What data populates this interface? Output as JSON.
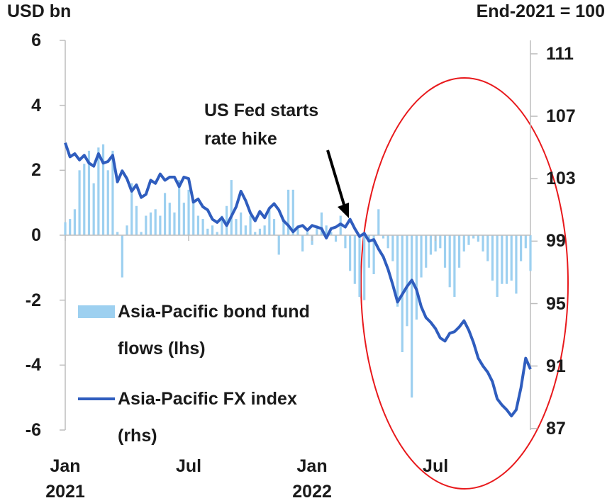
{
  "chart_data": {
    "type": "combo",
    "ylabel": "USD bn",
    "y2label": "End-2021 = 100",
    "annotation": "US Fed starts\nrate hike",
    "xlim": [
      0,
      98
    ],
    "xticks": [
      {
        "value": 0,
        "label": "Jan\n2021"
      },
      {
        "value": 26,
        "label": "Jul"
      },
      {
        "value": 52,
        "label": "Jan\n2022"
      },
      {
        "value": 78,
        "label": "Jul"
      }
    ],
    "ylim": [
      -6,
      6
    ],
    "yticks": [
      -6,
      -4,
      -2,
      0,
      2,
      4,
      6
    ],
    "y2lim": [
      86.9,
      111.86
    ],
    "y2ticks": [
      87,
      91,
      95,
      99,
      103,
      107,
      111
    ],
    "x": [
      0,
      1,
      2,
      3,
      4,
      5,
      6,
      7,
      8,
      9,
      10,
      11,
      12,
      13,
      14,
      15,
      16,
      17,
      18,
      19,
      20,
      21,
      22,
      23,
      24,
      25,
      26,
      27,
      28,
      29,
      30,
      31,
      32,
      33,
      34,
      35,
      36,
      37,
      38,
      39,
      40,
      41,
      42,
      43,
      44,
      45,
      46,
      47,
      48,
      49,
      50,
      51,
      52,
      53,
      54,
      55,
      56,
      57,
      58,
      59,
      60,
      61,
      62,
      63,
      64,
      65,
      66,
      67,
      68,
      69,
      70,
      71,
      72,
      73,
      74,
      75,
      76,
      77,
      78,
      79,
      80,
      81,
      82,
      83,
      84,
      85,
      86,
      87,
      88,
      89,
      90,
      91,
      92,
      93,
      94,
      95,
      96,
      97,
      98
    ],
    "series": [
      {
        "name": "Asia-Pacific bond fund\nflows (lhs)",
        "type": "bar",
        "color": "#9dd0f0",
        "values": [
          0.4,
          0.5,
          0.8,
          2.0,
          2.2,
          2.6,
          1.6,
          2.7,
          2.8,
          2.0,
          2.6,
          0.1,
          -1.3,
          0.3,
          1.6,
          0.9,
          0.1,
          0.6,
          0.7,
          0.8,
          0.6,
          1.3,
          1.0,
          0.7,
          1.7,
          1.0,
          1.4,
          1.1,
          0.6,
          0.5,
          0.2,
          0.3,
          0.1,
          0.6,
          0.9,
          1.7,
          0.5,
          0.7,
          0.3,
          0.6,
          0.1,
          0.2,
          0.3,
          0.8,
          0.5,
          -0.6,
          0.5,
          1.4,
          1.4,
          0.3,
          -0.5,
          0.1,
          -0.3,
          0.3,
          0.7,
          0.3,
          0.1,
          -0.2,
          0.6,
          -0.4,
          -1.1,
          -1.5,
          -1.9,
          -2.0,
          -1.0,
          -1.2,
          0.8,
          -0.1,
          -0.4,
          -0.8,
          -2.2,
          -3.6,
          -2.8,
          -5.0,
          -2.6,
          -1.3,
          -1.0,
          -0.6,
          -0.5,
          -0.4,
          -1.0,
          -1.6,
          -1.9,
          -1.0,
          -0.5,
          -0.3,
          -0.1,
          -0.2,
          -0.5,
          -0.8,
          -1.4,
          -1.9,
          -1.5,
          -1.5,
          -1.4,
          -1.8,
          -0.8,
          -0.4,
          -1.1
        ]
      },
      {
        "name": "Asia-Pacific FX index\n(rhs)",
        "type": "line",
        "axis": "y2",
        "color": "#2f5dbe",
        "values": [
          105.3,
          104.4,
          104.6,
          104.2,
          104.5,
          104.0,
          103.8,
          104.6,
          104.0,
          104.1,
          104.5,
          102.8,
          103.5,
          103.0,
          102.2,
          102.6,
          101.8,
          102.0,
          102.9,
          102.7,
          103.3,
          102.9,
          103.1,
          103.1,
          102.5,
          103.1,
          103.0,
          101.5,
          101.7,
          101.2,
          101.0,
          100.4,
          100.2,
          100.5,
          100.0,
          100.6,
          101.2,
          102.2,
          101.6,
          100.8,
          100.3,
          100.9,
          100.5,
          101.1,
          101.4,
          101.0,
          100.3,
          100.0,
          99.6,
          99.9,
          100.0,
          99.7,
          100.0,
          99.9,
          99.8,
          99.2,
          99.8,
          99.9,
          100.1,
          99.9,
          100.4,
          99.8,
          99.3,
          99.5,
          99.0,
          99.1,
          98.5,
          98.0,
          97.2,
          96.2,
          95.1,
          95.6,
          96.1,
          96.5,
          95.9,
          94.8,
          94.1,
          93.8,
          93.4,
          92.8,
          92.6,
          93.1,
          93.2,
          93.5,
          93.9,
          93.3,
          92.5,
          91.5,
          91.0,
          90.6,
          90.0,
          88.9,
          88.5,
          88.2,
          87.8,
          88.2,
          89.6,
          91.5,
          90.8
        ]
      }
    ]
  }
}
